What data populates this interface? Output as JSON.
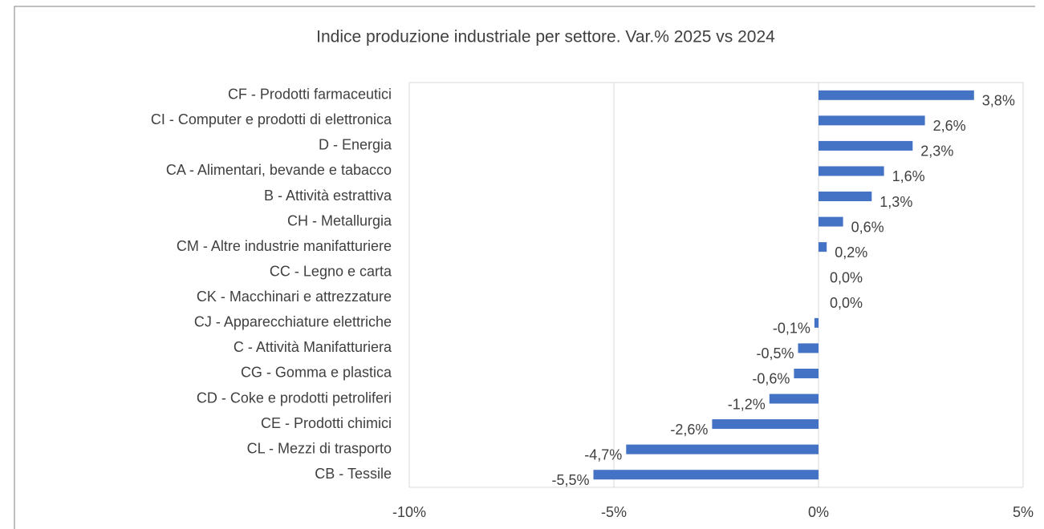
{
  "chart_data": {
    "type": "bar",
    "orientation": "horizontal",
    "title": "Indice produzione industriale per settore. Var.% 2025 vs 2024",
    "categories": [
      "CF - Prodotti farmaceutici",
      "CI - Computer e prodotti di elettronica",
      "D - Energia",
      "CA - Alimentari, bevande e tabacco",
      "B - Attività estrattiva",
      "CH - Metallurgia",
      "CM - Altre industrie manifatturiere",
      "CC - Legno e carta",
      "CK - Macchinari e attrezzature",
      "CJ - Apparecchiature elettriche",
      "C - Attività Manifatturiera",
      "CG - Gomma e plastica",
      "CD - Coke e prodotti petroliferi",
      "CE - Prodotti chimici",
      "CL - Mezzi di trasporto",
      "CB - Tessile"
    ],
    "values": [
      3.8,
      2.6,
      2.3,
      1.6,
      1.3,
      0.6,
      0.2,
      0.0,
      0.0,
      -0.1,
      -0.5,
      -0.6,
      -1.2,
      -2.6,
      -4.7,
      -5.5
    ],
    "value_labels": [
      "3,8%",
      "2,6%",
      "2,3%",
      "1,6%",
      "1,3%",
      "0,6%",
      "0,2%",
      "0,0%",
      "0,0%",
      "-0,1%",
      "-0,5%",
      "-0,6%",
      "-1,2%",
      "-2,6%",
      "-4,7%",
      "-5,5%"
    ],
    "color": "#4472c4",
    "xlim": [
      -10,
      5
    ],
    "xticks": [
      {
        "value": -10,
        "label": "-10%"
      },
      {
        "value": -5,
        "label": "-5%"
      },
      {
        "value": 0,
        "label": "0%"
      },
      {
        "value": 5,
        "label": "5%"
      }
    ],
    "grid": true
  }
}
